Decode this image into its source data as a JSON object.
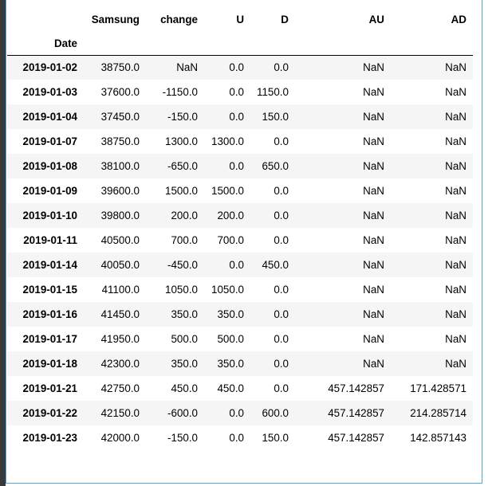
{
  "table": {
    "index_name": "Date",
    "columns": [
      "Samsung",
      "change",
      "U",
      "D",
      "AU",
      "AD"
    ],
    "rows": [
      {
        "date": "2019-01-02",
        "values": [
          "38750.0",
          "NaN",
          "0.0",
          "0.0",
          "NaN",
          "NaN"
        ]
      },
      {
        "date": "2019-01-03",
        "values": [
          "37600.0",
          "-1150.0",
          "0.0",
          "1150.0",
          "NaN",
          "NaN"
        ]
      },
      {
        "date": "2019-01-04",
        "values": [
          "37450.0",
          "-150.0",
          "0.0",
          "150.0",
          "NaN",
          "NaN"
        ]
      },
      {
        "date": "2019-01-07",
        "values": [
          "38750.0",
          "1300.0",
          "1300.0",
          "0.0",
          "NaN",
          "NaN"
        ]
      },
      {
        "date": "2019-01-08",
        "values": [
          "38100.0",
          "-650.0",
          "0.0",
          "650.0",
          "NaN",
          "NaN"
        ]
      },
      {
        "date": "2019-01-09",
        "values": [
          "39600.0",
          "1500.0",
          "1500.0",
          "0.0",
          "NaN",
          "NaN"
        ]
      },
      {
        "date": "2019-01-10",
        "values": [
          "39800.0",
          "200.0",
          "200.0",
          "0.0",
          "NaN",
          "NaN"
        ]
      },
      {
        "date": "2019-01-11",
        "values": [
          "40500.0",
          "700.0",
          "700.0",
          "0.0",
          "NaN",
          "NaN"
        ]
      },
      {
        "date": "2019-01-14",
        "values": [
          "40050.0",
          "-450.0",
          "0.0",
          "450.0",
          "NaN",
          "NaN"
        ]
      },
      {
        "date": "2019-01-15",
        "values": [
          "41100.0",
          "1050.0",
          "1050.0",
          "0.0",
          "NaN",
          "NaN"
        ]
      },
      {
        "date": "2019-01-16",
        "values": [
          "41450.0",
          "350.0",
          "350.0",
          "0.0",
          "NaN",
          "NaN"
        ]
      },
      {
        "date": "2019-01-17",
        "values": [
          "41950.0",
          "500.0",
          "500.0",
          "0.0",
          "NaN",
          "NaN"
        ]
      },
      {
        "date": "2019-01-18",
        "values": [
          "42300.0",
          "350.0",
          "350.0",
          "0.0",
          "NaN",
          "NaN"
        ]
      },
      {
        "date": "2019-01-21",
        "values": [
          "42750.0",
          "450.0",
          "450.0",
          "0.0",
          "457.142857",
          "171.428571"
        ]
      },
      {
        "date": "2019-01-22",
        "values": [
          "42150.0",
          "-600.0",
          "0.0",
          "600.0",
          "457.142857",
          "214.285714"
        ]
      },
      {
        "date": "2019-01-23",
        "values": [
          "42000.0",
          "-150.0",
          "0.0",
          "150.0",
          "457.142857",
          "142.857143"
        ]
      }
    ]
  }
}
